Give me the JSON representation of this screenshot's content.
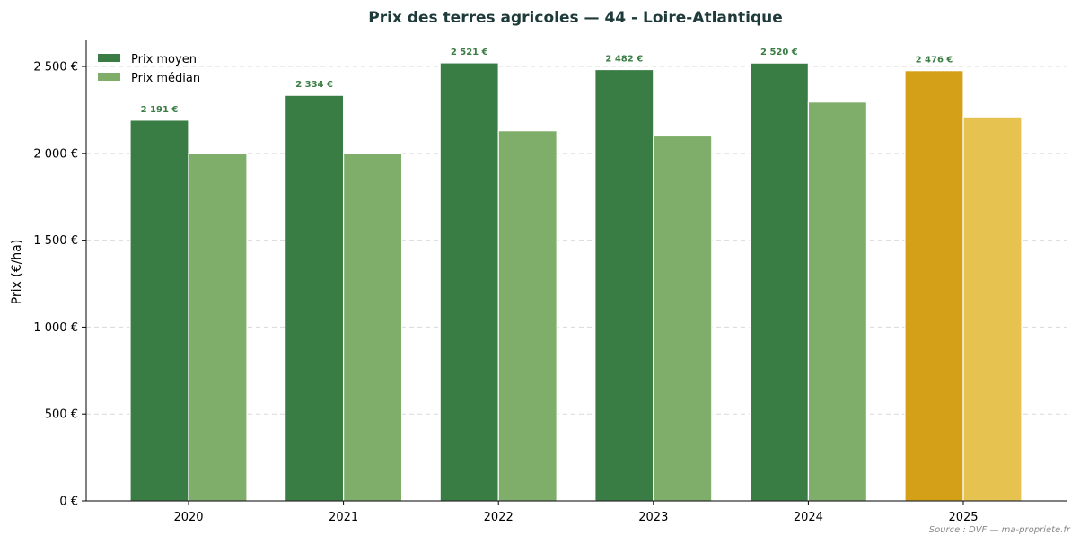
{
  "chart_data": {
    "type": "bar",
    "title": "Prix des terres agricoles — 44 - Loire-Atlantique",
    "ylabel": "Prix (€/ha)",
    "xlabel": "",
    "categories": [
      "2020",
      "2021",
      "2022",
      "2023",
      "2024",
      "2025"
    ],
    "series": [
      {
        "name": "Prix moyen",
        "values": [
          2191,
          2334,
          2521,
          2482,
          2520,
          2476
        ]
      },
      {
        "name": "Prix médian",
        "values": [
          2000,
          2000,
          2130,
          2100,
          2295,
          2210
        ]
      }
    ],
    "data_labels": [
      "2 191 €",
      "2 334 €",
      "2 521 €",
      "2 482 €",
      "2 520 €",
      "2 476 €"
    ],
    "ylim": [
      0,
      2650
    ],
    "yticks": [
      0,
      500,
      1000,
      1500,
      2000,
      2500
    ],
    "ytick_labels": [
      "0 €",
      "500 €",
      "1 000 €",
      "1 500 €",
      "2 000 €",
      "2 500 €"
    ],
    "grid": "horizontal dashed",
    "legend_position": "top-left",
    "colors": {
      "moyen": "#3a7d44",
      "median": "#7fae6a",
      "moyen_highlight": "#d4a017",
      "median_highlight": "#e6c350",
      "data_label": "#3a7d44",
      "title": "#1f3a3a"
    },
    "highlight_category": "2025",
    "source": "Source : DVF — ma-propriete.fr"
  }
}
